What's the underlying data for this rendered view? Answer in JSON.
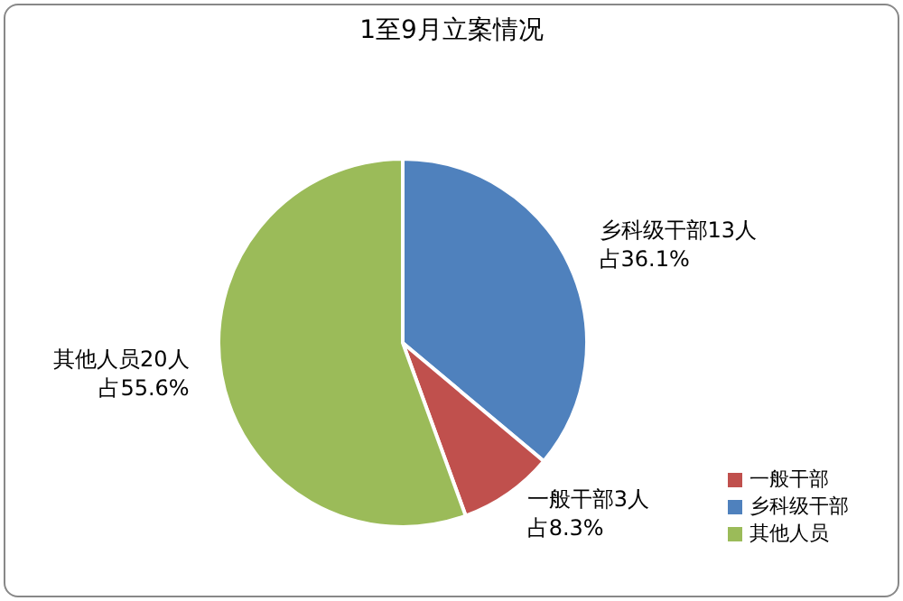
{
  "chart_data": {
    "type": "pie",
    "title": "1至9月立案情况",
    "categories": [
      "乡科级干部",
      "一般干部",
      "其他人员"
    ],
    "values": [
      13,
      3,
      20
    ],
    "colors": [
      "#4f81bd",
      "#c0504d",
      "#9bbb59"
    ],
    "value_labels": [
      "乡科级干部13人占36.1%",
      "一般干部3人占8.3%",
      "其他人员20人占55.6%"
    ],
    "legend": "bottom right"
  }
}
